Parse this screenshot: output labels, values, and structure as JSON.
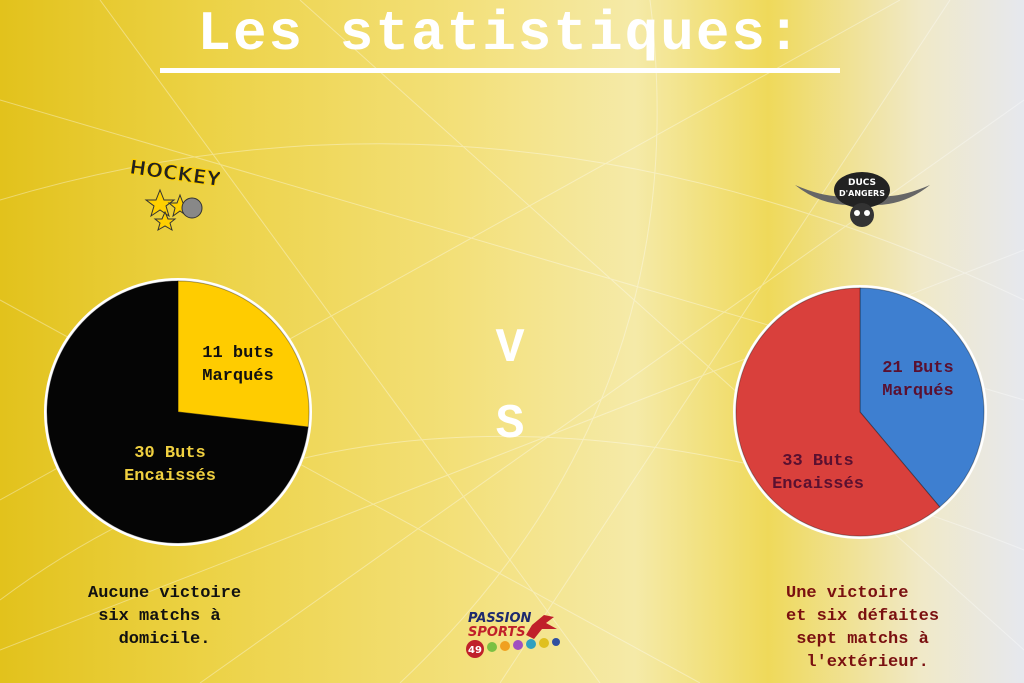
{
  "title": "Les statistiques:",
  "vs": [
    "V",
    "S"
  ],
  "chart_data": [
    {
      "type": "pie",
      "team": "home",
      "values": [
        11,
        30
      ],
      "labels": [
        "11 buts\nMarqués",
        "30 Buts\nEncaissés"
      ],
      "colors": [
        "#ffcc00",
        "#050505"
      ],
      "label_colors": [
        "#111111",
        "#f0d040"
      ]
    },
    {
      "type": "pie",
      "team": "away",
      "values": [
        21,
        33
      ],
      "labels": [
        "21 Buts\nMarqués",
        "33 Buts\nEncaissés"
      ],
      "colors": [
        "#3e7fd0",
        "#d9403c"
      ],
      "label_colors": [
        "#5a1030",
        "#5a1030"
      ]
    }
  ],
  "home": {
    "logo_text": "HOCKEY",
    "caption": "Aucune victoire\n six matchs à\n   domicile."
  },
  "away": {
    "logo_text": "DUCS D'ANGERS",
    "caption": "Une victoire\net six défaites\n sept matchs à\n  l'extérieur."
  },
  "sponsor": {
    "line1": "PASSION",
    "line2": "SPORTS",
    "badge": "49"
  }
}
